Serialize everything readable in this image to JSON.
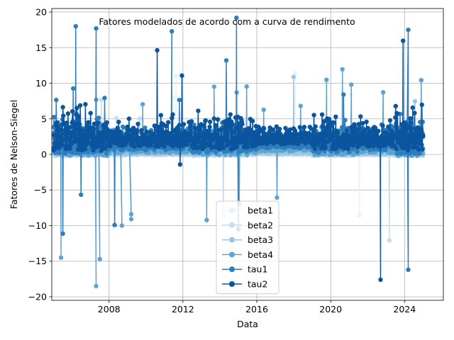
{
  "chart_data": {
    "type": "line",
    "title": "Fatores modelados de acordo com a curva de rendimento",
    "xlabel": "Data",
    "ylabel": "Fatores de Nelson-Siegel",
    "xlim": [
      2004.9,
      2026.1
    ],
    "ylim": [
      -20.5,
      20.5
    ],
    "x_ticks": [
      2008,
      2012,
      2016,
      2020,
      2024
    ],
    "y_ticks": [
      -20,
      -15,
      -10,
      -5,
      0,
      5,
      10,
      15,
      20
    ],
    "grid": true,
    "legend_position": "lower center",
    "x_range": [
      2005.0,
      2025.0
    ],
    "series": [
      {
        "name": "beta1",
        "color": "#eaf3fb",
        "marker": "circle"
      },
      {
        "name": "beta2",
        "color": "#c8dcf0",
        "marker": "circle"
      },
      {
        "name": "beta3",
        "color": "#99c7e2",
        "marker": "circle"
      },
      {
        "name": "beta4",
        "color": "#5fa3d3",
        "marker": "circle"
      },
      {
        "name": "tau1",
        "color": "#2e7ebc",
        "marker": "circle"
      },
      {
        "name": "tau2",
        "color": "#0b559f",
        "marker": "circle"
      }
    ],
    "notable_points": [
      {
        "series": "beta4",
        "x": 2005.4,
        "y": -14.5
      },
      {
        "series": "beta4",
        "x": 2007.3,
        "y": -18.5
      },
      {
        "series": "beta4",
        "x": 2007.5,
        "y": -14.7
      },
      {
        "series": "beta4",
        "x": 2008.7,
        "y": -10.0
      },
      {
        "series": "beta4",
        "x": 2009.2,
        "y": -8.4
      },
      {
        "series": "beta4",
        "x": 2009.2,
        "y": -9.1
      },
      {
        "series": "tau1",
        "x": 2014.9,
        "y": 19.2
      },
      {
        "series": "tau1",
        "x": 2015.0,
        "y": -10.5
      },
      {
        "series": "tau2",
        "x": 2022.7,
        "y": -17.6
      },
      {
        "series": "tau1",
        "x": 2024.2,
        "y": -16.2
      },
      {
        "series": "tau1",
        "x": 2024.2,
        "y": 17.5
      },
      {
        "series": "tau1",
        "x": 2007.3,
        "y": 17.7
      },
      {
        "series": "tau1",
        "x": 2011.4,
        "y": 17.3
      },
      {
        "series": "tau1",
        "x": 2006.2,
        "y": 18.0
      }
    ]
  }
}
